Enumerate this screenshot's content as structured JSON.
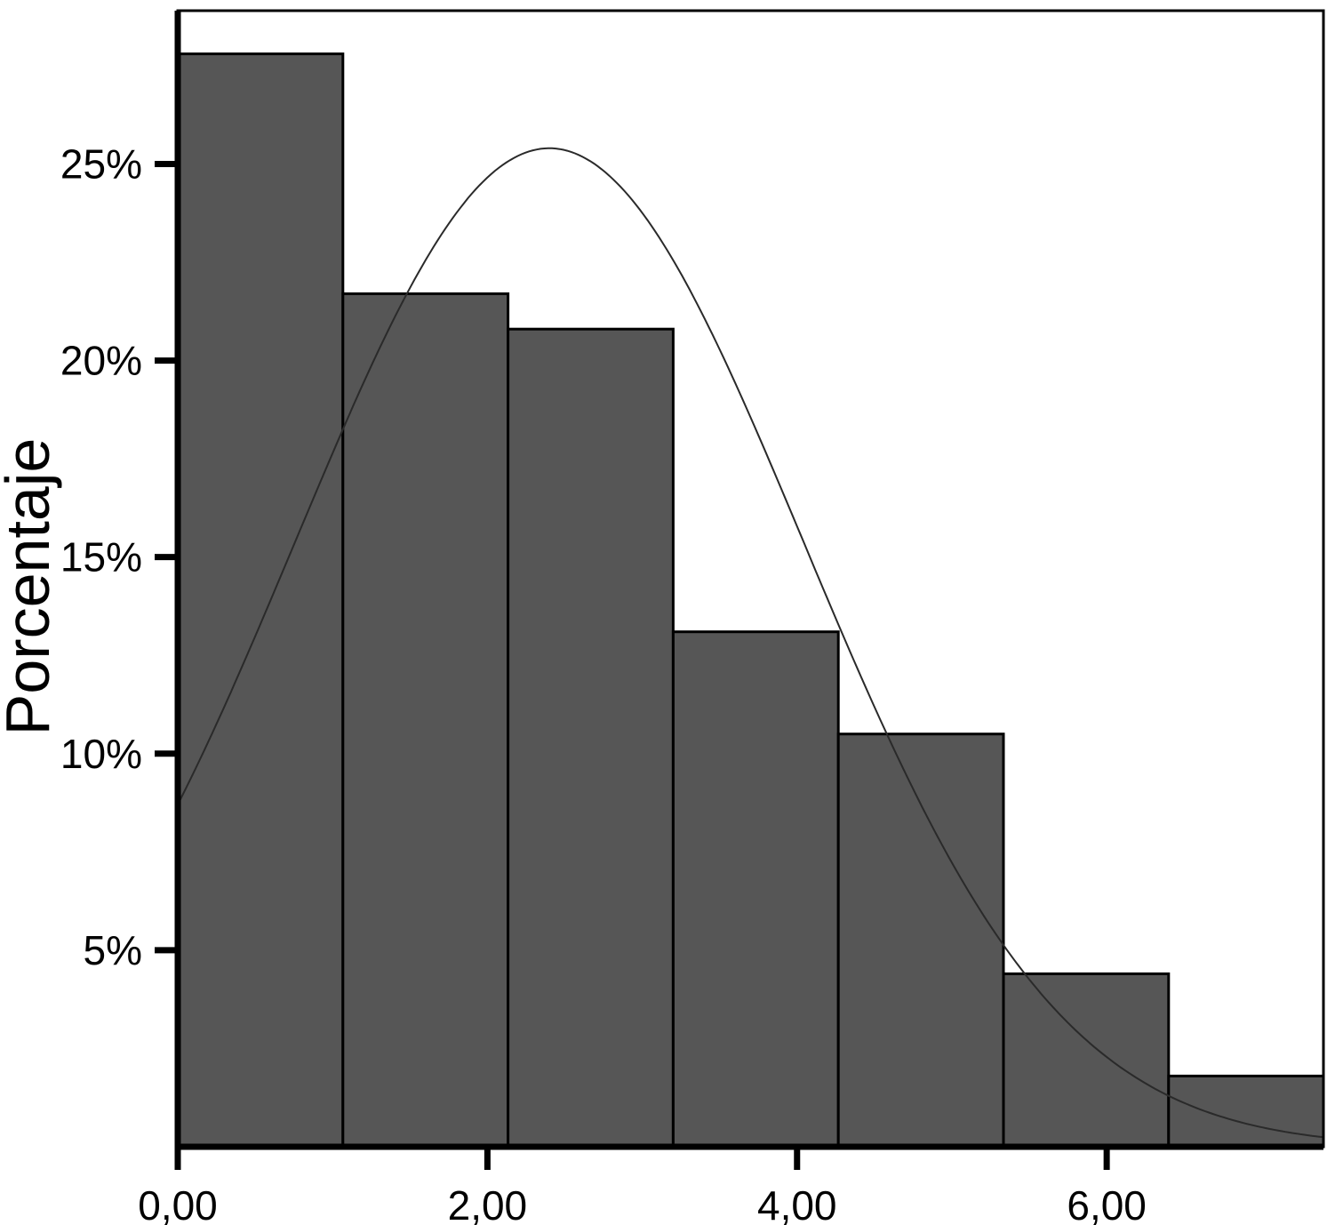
{
  "chart_data": {
    "type": "bar",
    "subtype": "histogram",
    "title": "",
    "xlabel": "",
    "ylabel": "Porcentaje",
    "x_tick_values": [
      0,
      2,
      4,
      6
    ],
    "x_tick_labels": [
      "0,00",
      "2,00",
      "4,00",
      "6,00"
    ],
    "y_tick_values": [
      5,
      10,
      15,
      20,
      25
    ],
    "y_tick_labels": [
      "5%",
      "10%",
      "15%",
      "20%",
      "25%"
    ],
    "xlim": [
      0,
      7.4
    ],
    "ylim": [
      0,
      28.9
    ],
    "grid": "off",
    "legend": "none",
    "bins": {
      "start": 0,
      "width": 1.0667,
      "count": 7
    },
    "values_percent": [
      27.8,
      21.7,
      20.8,
      13.1,
      10.5,
      4.4,
      1.8
    ],
    "normal_curve": {
      "mean": 2.4,
      "sd": 1.64,
      "peak_percent": 25.4
    },
    "colors": {
      "bar_fill": "#565656",
      "bar_border": "#000000",
      "curve": "#2a2a2a",
      "axis": "#000000",
      "background": "#ffffff"
    }
  }
}
